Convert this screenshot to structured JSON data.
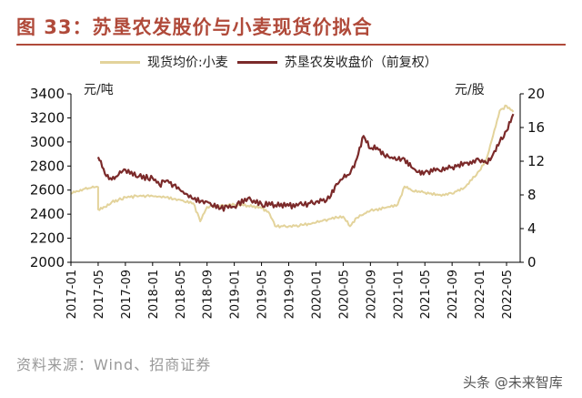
{
  "header": {
    "title": "图 33：苏垦农发股价与小麦现货价拟合"
  },
  "footer": {
    "source": "资料来源：Wind、招商证券",
    "watermark": "头条 @未来智库"
  },
  "colors": {
    "title": "#b04a3a",
    "wheat": "#e3d39b",
    "stock": "#7b2a2a",
    "axis": "#000000"
  },
  "chart_data": {
    "type": "line",
    "title": "苏垦农发股价与小麦现货价拟合",
    "legend": [
      "现货均价:小麦",
      "苏垦农发收盘价（前复权）"
    ],
    "legend_position": "top",
    "left_axis": {
      "label": "元/吨",
      "range": [
        2000,
        3400
      ],
      "ticks": [
        3400,
        3200,
        3000,
        2800,
        2600,
        2400,
        2200,
        2000
      ]
    },
    "right_axis": {
      "label": "元/股",
      "range": [
        0,
        20
      ],
      "ticks": [
        20,
        16,
        12,
        8,
        4,
        0
      ]
    },
    "x_range": [
      "2017-01",
      "2022-07"
    ],
    "x_ticks": [
      "2017-01",
      "2017-05",
      "2017-09",
      "2018-01",
      "2018-05",
      "2018-09",
      "2019-01",
      "2019-05",
      "2019-09",
      "2020-01",
      "2020-05",
      "2020-09",
      "2021-01",
      "2021-05",
      "2021-09",
      "2022-01",
      "2022-05"
    ],
    "series": [
      {
        "name": "现货均价:小麦",
        "axis": "left",
        "points": [
          [
            "2017-01",
            2570
          ],
          [
            "2017-02",
            2590
          ],
          [
            "2017-03",
            2610
          ],
          [
            "2017-04",
            2620
          ],
          [
            "2017-05",
            2625
          ],
          [
            "2017-05",
            2440
          ],
          [
            "2017-06",
            2460
          ],
          [
            "2017-07",
            2500
          ],
          [
            "2017-08",
            2520
          ],
          [
            "2017-09",
            2540
          ],
          [
            "2017-11",
            2550
          ],
          [
            "2018-01",
            2550
          ],
          [
            "2018-03",
            2540
          ],
          [
            "2018-05",
            2520
          ],
          [
            "2018-07",
            2490
          ],
          [
            "2018-08",
            2340
          ],
          [
            "2018-09",
            2460
          ],
          [
            "2018-11",
            2470
          ],
          [
            "2019-01",
            2480
          ],
          [
            "2019-03",
            2470
          ],
          [
            "2019-05",
            2450
          ],
          [
            "2019-06",
            2420
          ],
          [
            "2019-07",
            2300
          ],
          [
            "2019-09",
            2300
          ],
          [
            "2019-11",
            2310
          ],
          [
            "2020-01",
            2330
          ],
          [
            "2020-03",
            2360
          ],
          [
            "2020-05",
            2380
          ],
          [
            "2020-06",
            2300
          ],
          [
            "2020-07",
            2370
          ],
          [
            "2020-09",
            2430
          ],
          [
            "2020-11",
            2450
          ],
          [
            "2021-01",
            2480
          ],
          [
            "2021-02",
            2630
          ],
          [
            "2021-03",
            2600
          ],
          [
            "2021-05",
            2580
          ],
          [
            "2021-07",
            2560
          ],
          [
            "2021-09",
            2570
          ],
          [
            "2021-11",
            2630
          ],
          [
            "2022-01",
            2760
          ],
          [
            "2022-02",
            2850
          ],
          [
            "2022-03",
            3050
          ],
          [
            "2022-04",
            3260
          ],
          [
            "2022-05",
            3300
          ],
          [
            "2022-06",
            3250
          ]
        ]
      },
      {
        "name": "苏垦农发收盘价（前复权）",
        "axis": "right",
        "points": [
          [
            "2017-05",
            12.5
          ],
          [
            "2017-06",
            10.5
          ],
          [
            "2017-07",
            9.8
          ],
          [
            "2017-08",
            10.4
          ],
          [
            "2017-09",
            11.0
          ],
          [
            "2017-11",
            10.2
          ],
          [
            "2018-01",
            10.0
          ],
          [
            "2018-02",
            9.2
          ],
          [
            "2018-03",
            9.7
          ],
          [
            "2018-05",
            8.6
          ],
          [
            "2018-07",
            7.5
          ],
          [
            "2018-09",
            7.2
          ],
          [
            "2018-11",
            6.4
          ],
          [
            "2019-01",
            6.6
          ],
          [
            "2019-03",
            7.6
          ],
          [
            "2019-05",
            6.9
          ],
          [
            "2019-07",
            6.8
          ],
          [
            "2019-09",
            6.7
          ],
          [
            "2019-11",
            6.8
          ],
          [
            "2020-01",
            7.2
          ],
          [
            "2020-03",
            7.6
          ],
          [
            "2020-04",
            9.3
          ],
          [
            "2020-05",
            10.0
          ],
          [
            "2020-06",
            10.5
          ],
          [
            "2020-07",
            12.3
          ],
          [
            "2020-08",
            15.0
          ],
          [
            "2020-09",
            13.5
          ],
          [
            "2020-10",
            13.6
          ],
          [
            "2020-11",
            12.7
          ],
          [
            "2021-01",
            12.2
          ],
          [
            "2021-02",
            12.3
          ],
          [
            "2021-03",
            11.3
          ],
          [
            "2021-04",
            10.7
          ],
          [
            "2021-05",
            10.7
          ],
          [
            "2021-07",
            11.0
          ],
          [
            "2021-09",
            11.3
          ],
          [
            "2021-11",
            11.8
          ],
          [
            "2022-01",
            12.1
          ],
          [
            "2022-02",
            11.8
          ],
          [
            "2022-03",
            12.8
          ],
          [
            "2022-04",
            14.3
          ],
          [
            "2022-05",
            15.6
          ],
          [
            "2022-06",
            17.6
          ]
        ]
      }
    ]
  }
}
